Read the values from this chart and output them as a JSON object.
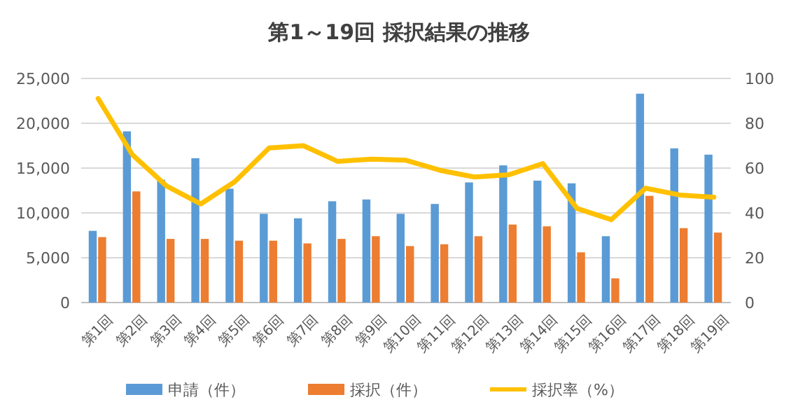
{
  "chart_data": {
    "type": "bar",
    "title": "第1～19回 採択結果の推移",
    "categories": [
      "第1回",
      "第2回",
      "第3回",
      "第4回",
      "第5回",
      "第6回",
      "第7回",
      "第8回",
      "第9回",
      "第10回",
      "第11回",
      "第12回",
      "第13回",
      "第14回",
      "第15回",
      "第16回",
      "第17回",
      "第18回",
      "第19回"
    ],
    "series": [
      {
        "name": "申請（件）",
        "color": "#5b9bd5",
        "values": [
          8000,
          19100,
          13700,
          16100,
          12700,
          9900,
          9400,
          11300,
          11500,
          9900,
          11000,
          13400,
          15300,
          13600,
          13300,
          7400,
          23300,
          17200,
          16500
        ]
      },
      {
        "name": "採択（件）",
        "color": "#ed7d31",
        "values": [
          7300,
          12400,
          7100,
          7100,
          6900,
          6900,
          6600,
          7100,
          7400,
          6300,
          6500,
          7400,
          8700,
          8500,
          5600,
          2700,
          11900,
          8300,
          7800
        ]
      },
      {
        "name": "採択率（%）",
        "type": "line",
        "axis": "y2",
        "color": "#ffc000",
        "values": [
          91,
          66,
          52,
          44,
          54,
          69,
          70,
          63,
          64,
          63.5,
          59,
          56,
          57,
          62,
          42,
          37,
          51,
          48,
          47
        ]
      }
    ],
    "ylim": [
      0,
      25000
    ],
    "yticks": [
      {
        "value": 0,
        "label": "0"
      },
      {
        "value": 5000,
        "label": "5,000"
      },
      {
        "value": 10000,
        "label": "10,000"
      },
      {
        "value": 15000,
        "label": "15,000"
      },
      {
        "value": 20000,
        "label": "20,000"
      },
      {
        "value": 25000,
        "label": "25,000"
      }
    ],
    "y2lim": [
      0,
      100
    ],
    "y2ticks": [
      0,
      20,
      40,
      60,
      80,
      100
    ],
    "grid": "y",
    "legend": "bottom",
    "marker": "none",
    "line_style": "solid"
  }
}
